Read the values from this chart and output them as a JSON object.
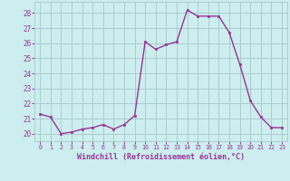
{
  "x": [
    0,
    1,
    2,
    3,
    4,
    5,
    6,
    7,
    8,
    9,
    10,
    11,
    12,
    13,
    14,
    15,
    16,
    17,
    18,
    19,
    20,
    21,
    22,
    23
  ],
  "y": [
    21.3,
    21.1,
    20.0,
    20.1,
    20.3,
    20.4,
    20.6,
    20.3,
    20.6,
    21.2,
    26.1,
    25.6,
    25.9,
    26.1,
    28.2,
    27.8,
    27.8,
    27.8,
    26.7,
    24.6,
    22.2,
    21.1,
    20.4,
    20.4
  ],
  "line_color": "#993399",
  "marker_color": "#993399",
  "bg_color": "#cceeee",
  "grid_color": "#aacccc",
  "xlabel": "Windchill (Refroidissement éolien,°C)",
  "xlabel_color": "#993399",
  "tick_color": "#993399",
  "ylim": [
    19.5,
    28.75
  ],
  "yticks": [
    20,
    21,
    22,
    23,
    24,
    25,
    26,
    27,
    28
  ],
  "xlim": [
    -0.5,
    23.5
  ],
  "xticks": [
    0,
    1,
    2,
    3,
    4,
    5,
    6,
    7,
    8,
    9,
    10,
    11,
    12,
    13,
    14,
    15,
    16,
    17,
    18,
    19,
    20,
    21,
    22,
    23
  ]
}
